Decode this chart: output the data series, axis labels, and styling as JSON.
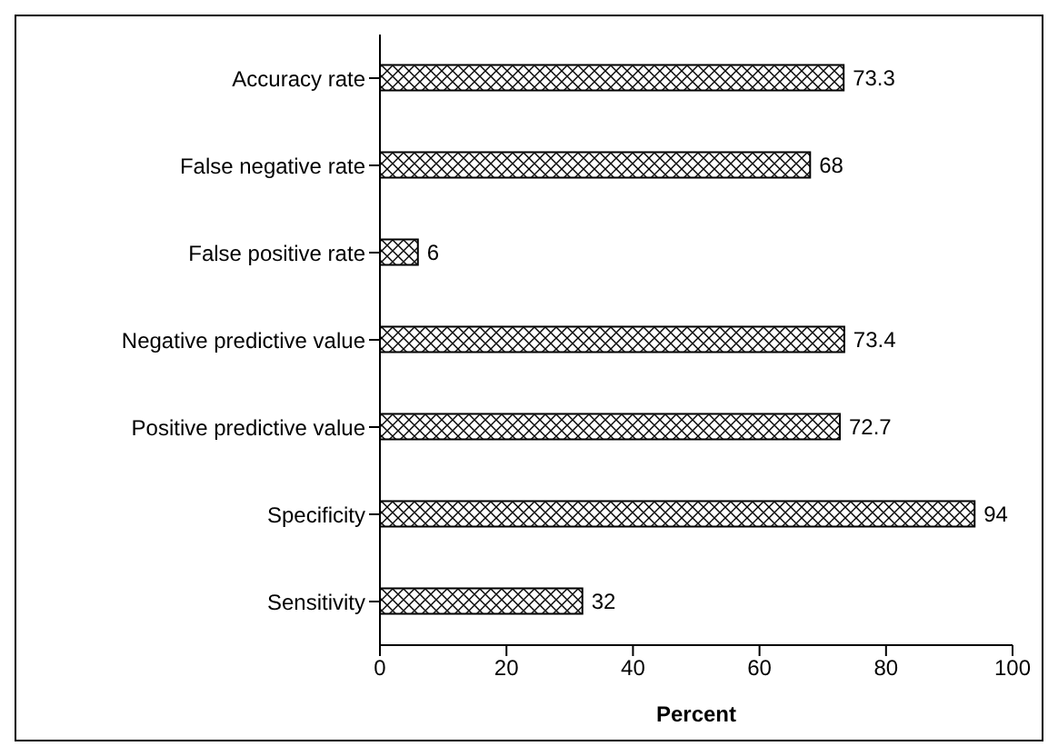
{
  "chart_data": {
    "type": "bar",
    "orientation": "horizontal",
    "xlabel": "Percent",
    "categories": [
      "Accuracy rate",
      "False negative rate",
      "False positive rate",
      "Negative predictive value",
      "Positive predictive value",
      "Specificity",
      "Sensitivity"
    ],
    "values": [
      73.3,
      68,
      6,
      73.4,
      72.7,
      94,
      32
    ],
    "color": "#000000",
    "xlim": [
      0,
      100
    ],
    "xticks": [
      0,
      20,
      40,
      60,
      80,
      100
    ],
    "grid": false,
    "legend": false,
    "data_labels": true
  }
}
